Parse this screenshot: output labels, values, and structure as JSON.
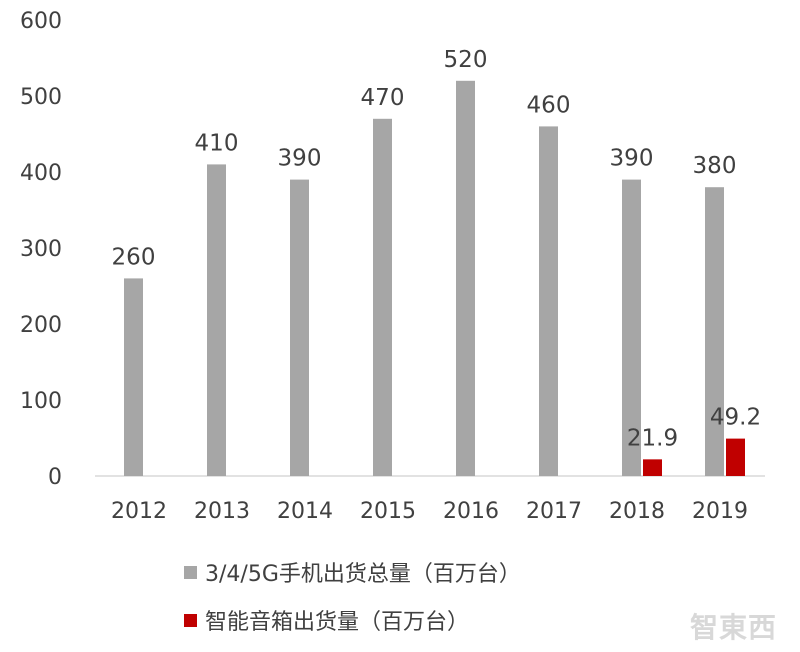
{
  "chart_data": {
    "type": "bar",
    "categories": [
      "2012",
      "2013",
      "2014",
      "2015",
      "2016",
      "2017",
      "2018",
      "2019"
    ],
    "series": [
      {
        "name": "3/4/5G手机出货总量（百万台）",
        "color": "#a6a6a6",
        "values": [
          260,
          410,
          390,
          470,
          520,
          460,
          390,
          380
        ],
        "labels": [
          "260",
          "410",
          "390",
          "470",
          "520",
          "460",
          "390",
          "380"
        ]
      },
      {
        "name": "智能音箱出货量（百万台）",
        "color": "#c00000",
        "values": [
          null,
          null,
          null,
          null,
          null,
          null,
          21.9,
          49.2
        ],
        "labels": [
          "",
          "",
          "",
          "",
          "",
          "",
          "21.9",
          "49.2"
        ]
      }
    ],
    "yticks": [
      "0",
      "100",
      "200",
      "300",
      "400",
      "500",
      "600"
    ],
    "ylim": [
      0,
      600
    ],
    "title": "",
    "xlabel": "",
    "ylabel": "",
    "grid": false,
    "legend_position": "bottom"
  },
  "watermark": "智東西"
}
